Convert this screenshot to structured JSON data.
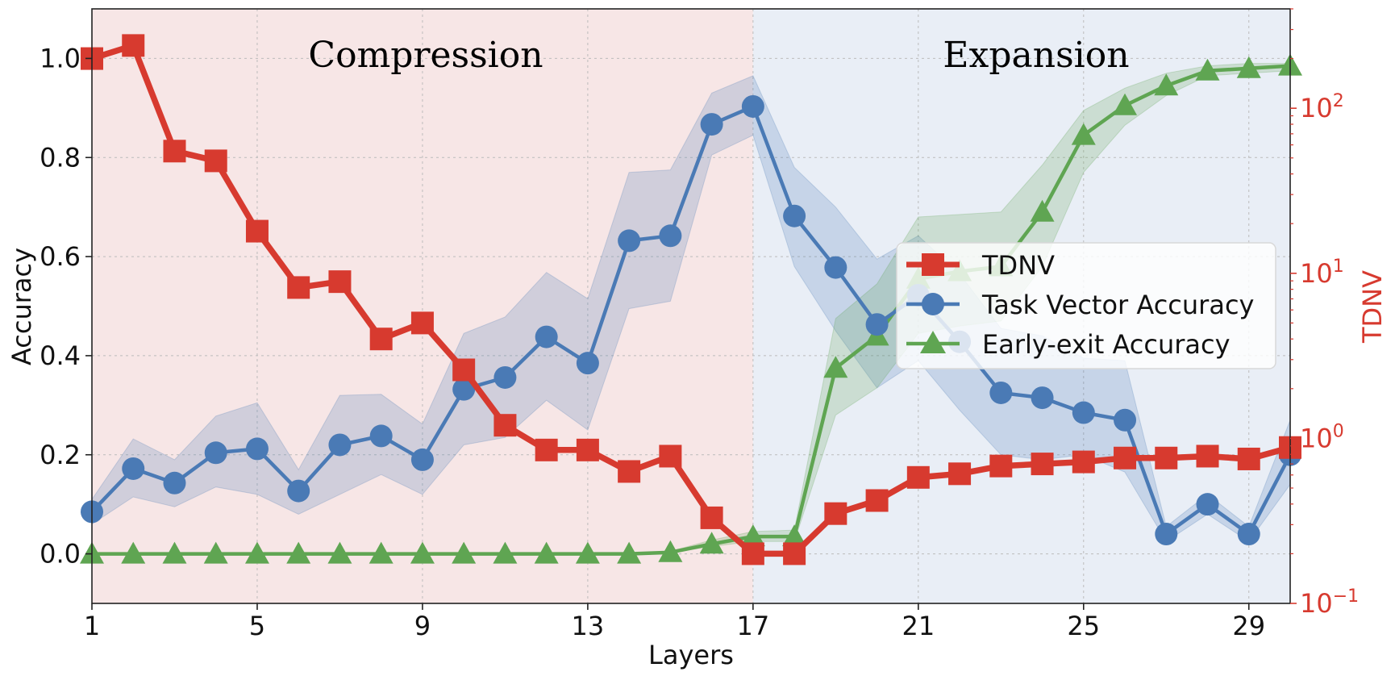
{
  "chart_data": {
    "type": "line",
    "xlabel": "Layers",
    "ylabel": "Accuracy",
    "y2label": "TDNV",
    "xlim": [
      1,
      30
    ],
    "ylim": [
      -0.1,
      1.1
    ],
    "y2lim": [
      0.1,
      400
    ],
    "y2scale": "log",
    "x_ticks": [
      "1",
      "5",
      "9",
      "13",
      "17",
      "21",
      "25",
      "29"
    ],
    "y_ticks": [
      "0.0",
      "0.2",
      "0.4",
      "0.6",
      "0.8",
      "1.0"
    ],
    "y2_ticks": [
      {
        "base": "10",
        "exp": "−1"
      },
      {
        "base": "10",
        "exp": "0"
      },
      {
        "base": "10",
        "exp": "1"
      },
      {
        "base": "10",
        "exp": "2"
      }
    ],
    "grid": true,
    "regions": [
      {
        "label": "Compression",
        "x_start": 1,
        "x_end": 17,
        "color": "#f7e6e6"
      },
      {
        "label": "Expansion",
        "x_start": 17,
        "x_end": 30,
        "color": "#e9eef6"
      }
    ],
    "legend_position": "center-right",
    "x": [
      1,
      2,
      3,
      4,
      5,
      6,
      7,
      8,
      9,
      10,
      11,
      12,
      13,
      14,
      15,
      16,
      17,
      18,
      19,
      20,
      21,
      22,
      23,
      24,
      25,
      26,
      27,
      28,
      29,
      30
    ],
    "series": [
      {
        "name": "TDNV",
        "axis": "right",
        "color": "#d73a2f",
        "marker": "square",
        "values": [
          200,
          240,
          55,
          48,
          18,
          8.2,
          8.9,
          4.0,
          5.0,
          2.6,
          1.2,
          0.85,
          0.85,
          0.63,
          0.78,
          0.33,
          0.2,
          0.2,
          0.35,
          0.42,
          0.58,
          0.61,
          0.68,
          0.7,
          0.72,
          0.76,
          0.76,
          0.78,
          0.75,
          0.88
        ]
      },
      {
        "name": "Task Vector Accuracy",
        "axis": "left",
        "color": "#4a7ab5",
        "marker": "circle",
        "values": [
          0.085,
          0.172,
          0.143,
          0.204,
          0.212,
          0.127,
          0.22,
          0.238,
          0.19,
          0.332,
          0.356,
          0.438,
          0.385,
          0.632,
          0.642,
          0.867,
          0.903,
          0.682,
          0.578,
          0.463,
          0.522,
          0.428,
          0.325,
          0.315,
          0.285,
          0.27,
          0.04,
          0.1,
          0.04,
          0.2
        ],
        "band_low": [
          0.06,
          0.115,
          0.095,
          0.135,
          0.12,
          0.08,
          0.12,
          0.16,
          0.12,
          0.22,
          0.235,
          0.31,
          0.25,
          0.495,
          0.51,
          0.805,
          0.845,
          0.58,
          0.45,
          0.335,
          0.39,
          0.29,
          0.2,
          0.19,
          0.2,
          0.165,
          0.025,
          0.08,
          0.025,
          0.14
        ],
        "band_high": [
          0.11,
          0.232,
          0.19,
          0.278,
          0.305,
          0.17,
          0.32,
          0.322,
          0.262,
          0.445,
          0.478,
          0.568,
          0.515,
          0.77,
          0.775,
          0.93,
          0.965,
          0.78,
          0.7,
          0.595,
          0.642,
          0.565,
          0.455,
          0.44,
          0.395,
          0.39,
          0.055,
          0.12,
          0.055,
          0.27
        ]
      },
      {
        "name": "Early-exit Accuracy",
        "axis": "left",
        "color": "#5fa552",
        "marker": "triangle",
        "values": [
          0,
          0,
          0,
          0,
          0,
          0,
          0,
          0,
          0,
          0,
          0,
          0,
          0,
          0,
          0.003,
          0.02,
          0.035,
          0.035,
          0.375,
          0.44,
          0.555,
          0.57,
          0.58,
          0.69,
          0.845,
          0.905,
          0.945,
          0.975,
          0.98,
          0.985
        ],
        "band_low": [
          0,
          0,
          0,
          0,
          0,
          0,
          0,
          0,
          0,
          0,
          0,
          0,
          0,
          0,
          0.002,
          0.015,
          0.025,
          0.025,
          0.28,
          0.335,
          0.445,
          0.46,
          0.47,
          0.58,
          0.77,
          0.865,
          0.925,
          0.965,
          0.97,
          0.975
        ],
        "band_high": [
          0,
          0,
          0,
          0,
          0,
          0,
          0,
          0,
          0,
          0,
          0,
          0,
          0,
          0,
          0.005,
          0.028,
          0.045,
          0.048,
          0.475,
          0.545,
          0.68,
          0.685,
          0.69,
          0.785,
          0.895,
          0.94,
          0.97,
          0.985,
          0.99,
          0.99
        ]
      }
    ]
  }
}
